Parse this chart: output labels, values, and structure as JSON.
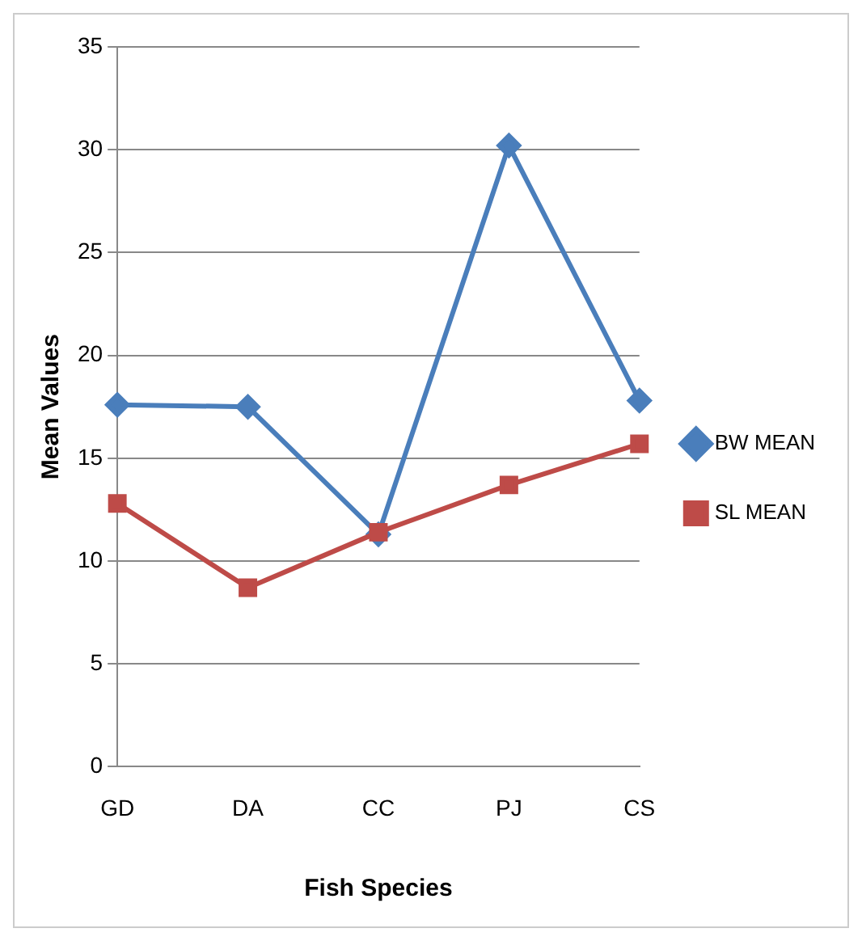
{
  "chart_data": {
    "type": "line",
    "xlabel": "Fish Species",
    "ylabel": "Mean Values",
    "categories": [
      "GD",
      "DA",
      "CC",
      "PJ",
      "CS"
    ],
    "series": [
      {
        "name": "BW MEAN",
        "color": "#4a7ebb",
        "marker": "diamond",
        "values": [
          17.6,
          17.5,
          11.3,
          30.2,
          17.8
        ]
      },
      {
        "name": "SL MEAN",
        "color": "#be4b48",
        "marker": "square",
        "values": [
          12.8,
          8.7,
          11.4,
          13.7,
          15.7
        ]
      }
    ],
    "ylim": [
      0,
      35
    ],
    "yticks": [
      0,
      5,
      10,
      15,
      20,
      25,
      30,
      35
    ],
    "grid": "y",
    "legend": "right",
    "line_style": "solid"
  }
}
